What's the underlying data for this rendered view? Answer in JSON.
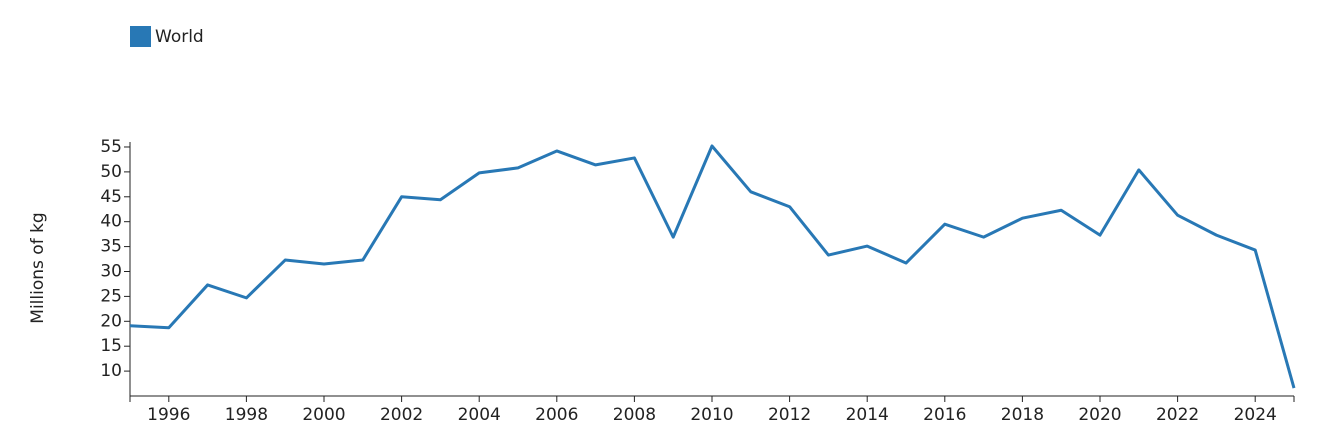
{
  "chart_data": {
    "type": "line",
    "y_label": "Millions of kg",
    "legend": "top-left",
    "x": [
      1995,
      1996,
      1997,
      1998,
      1999,
      2000,
      2001,
      2002,
      2003,
      2004,
      2005,
      2006,
      2007,
      2008,
      2009,
      2010,
      2011,
      2012,
      2013,
      2014,
      2015,
      2016,
      2017,
      2018,
      2019,
      2020,
      2021,
      2022,
      2023,
      2024,
      2025
    ],
    "series": [
      {
        "name": "World",
        "color": "#2878b5",
        "values": [
          19.1,
          18.7,
          27.3,
          24.7,
          32.3,
          31.5,
          32.3,
          45.0,
          44.4,
          49.8,
          50.8,
          54.2,
          51.4,
          52.8,
          36.9,
          55.2,
          46.0,
          43.0,
          33.3,
          35.1,
          31.7,
          39.5,
          36.9,
          40.7,
          42.3,
          37.3,
          50.4,
          41.3,
          37.3,
          34.3,
          6.6
        ]
      }
    ],
    "xlim": [
      1995,
      2025
    ],
    "xticks": [
      1996,
      1998,
      2000,
      2002,
      2004,
      2006,
      2008,
      2010,
      2012,
      2014,
      2016,
      2018,
      2020,
      2022,
      2024
    ],
    "ylim": [
      5,
      56
    ],
    "yticks": [
      10,
      15,
      20,
      25,
      30,
      35,
      40,
      45,
      50,
      55
    ]
  }
}
